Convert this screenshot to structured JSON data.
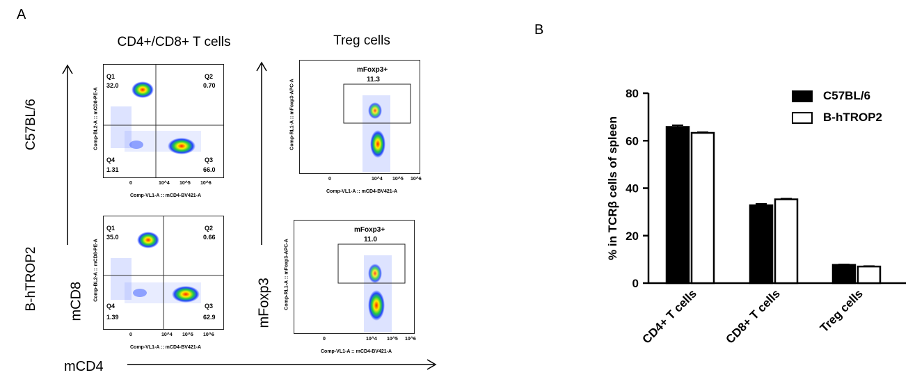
{
  "panel_a": {
    "letter": "A",
    "col_titles": [
      "CD4+/CD8+ T cells",
      "Treg cells"
    ],
    "row_labels": [
      "C57BL/6",
      "B-hTROP2"
    ],
    "y_axis_title_left": "mCD8",
    "y_axis_title_right": "mFoxp3",
    "x_axis_title": "mCD4",
    "quadrant_plots": [
      {
        "ylabel": "Comp-BL2-A :: mCD8-PE-A",
        "xlabel": "Comp-VL1-A :: mCD4-BV421-A",
        "quadrants": [
          {
            "name": "Q1",
            "value": "32.0"
          },
          {
            "name": "Q2",
            "value": "0.70"
          },
          {
            "name": "Q4",
            "value": "1.31"
          },
          {
            "name": "Q3",
            "value": "66.0"
          }
        ]
      },
      {
        "ylabel": "Comp-BL2-A :: mCD8-PE-A",
        "xlabel": "Comp-VL1-A :: mCD4-BV421-A",
        "quadrants": [
          {
            "name": "Q1",
            "value": "35.0"
          },
          {
            "name": "Q2",
            "value": "0.66"
          },
          {
            "name": "Q4",
            "value": "1.39"
          },
          {
            "name": "Q3",
            "value": "62.9"
          }
        ]
      }
    ],
    "gate_plots": [
      {
        "ylabel": "Comp-RL1-A :: mFoxp3-APC-A",
        "xlabel": "Comp-VL1-A :: mCD4-BV421-A",
        "gate_name": "mFoxp3+",
        "gate_value": "11.3"
      },
      {
        "ylabel": "Comp-RL1-A :: mFoxp3-APC-A",
        "xlabel": "Comp-VL1-A :: mCD4-BV421-A",
        "gate_name": "mFoxp3+",
        "gate_value": "11.0"
      }
    ],
    "flow_y_ticks": [
      "10^6",
      "10^5",
      "10^4",
      "10^3",
      "0",
      "-10^3"
    ],
    "flow_x_ticks": [
      "0",
      "10^4",
      "10^5",
      "10^6"
    ]
  },
  "panel_b": {
    "letter": "B"
  },
  "chart_data": {
    "type": "bar",
    "title": "",
    "xlabel": "",
    "ylabel": "% in TCRβ cells of spleen",
    "categories": [
      "CD4+ T cells",
      "CD8+ T cells",
      "Treg cells"
    ],
    "series": [
      {
        "name": "C57BL/6",
        "values": [
          65.8,
          32.8,
          7.7
        ],
        "errors": [
          0.7,
          0.6,
          0.2
        ],
        "fill": "#000000"
      },
      {
        "name": "B-hTROP2",
        "values": [
          63.3,
          35.3,
          7.0
        ],
        "errors": [
          0.3,
          0.3,
          0.2
        ],
        "fill": "#ffffff"
      }
    ],
    "ylim": [
      0,
      80
    ],
    "yticks": [
      0,
      20,
      40,
      60,
      80
    ],
    "legend_position": "top-right",
    "grid": false
  }
}
